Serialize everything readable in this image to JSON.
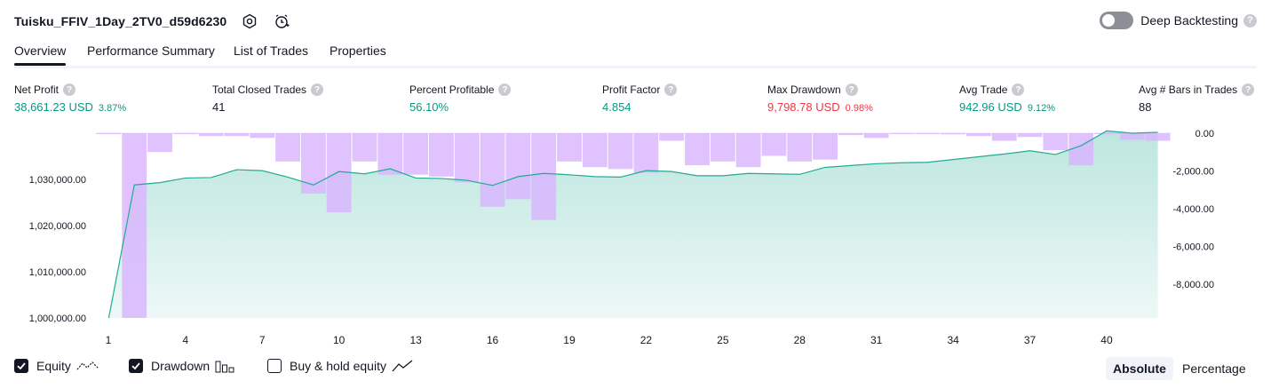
{
  "header": {
    "title": "Tuisku_FFIV_1Day_2TV0_d59d6230",
    "deep_backtesting_label": "Deep Backtesting",
    "help_glyph": "?"
  },
  "tabs": [
    {
      "label": "Overview",
      "active": true
    },
    {
      "label": "Performance Summary",
      "active": false
    },
    {
      "label": "List of Trades",
      "active": false
    },
    {
      "label": "Properties",
      "active": false
    }
  ],
  "stats": [
    {
      "label": "Net Profit",
      "value": "38,661.23 USD",
      "pct": "3.87%",
      "color": "green"
    },
    {
      "label": "Total Closed Trades",
      "value": "41",
      "pct": "",
      "color": "default"
    },
    {
      "label": "Percent Profitable",
      "value": "56.10%",
      "pct": "",
      "color": "green"
    },
    {
      "label": "Profit Factor",
      "value": "4.854",
      "pct": "",
      "color": "green"
    },
    {
      "label": "Max Drawdown",
      "value": "9,798.78 USD",
      "pct": "0.98%",
      "color": "red"
    },
    {
      "label": "Avg Trade",
      "value": "942.96 USD",
      "pct": "9.12%",
      "color": "green"
    },
    {
      "label": "Avg # Bars in Trades",
      "value": "88",
      "pct": "",
      "color": "default"
    }
  ],
  "chart_data": {
    "type": "area",
    "x": [
      1,
      2,
      3,
      4,
      5,
      6,
      7,
      8,
      9,
      10,
      11,
      12,
      13,
      14,
      15,
      16,
      17,
      18,
      19,
      20,
      21,
      22,
      23,
      24,
      25,
      26,
      27,
      28,
      29,
      30,
      31,
      32,
      33,
      34,
      35,
      36,
      37,
      38,
      39,
      40,
      41,
      42
    ],
    "x_ticks": [
      "1",
      "4",
      "7",
      "10",
      "13",
      "16",
      "19",
      "22",
      "25",
      "28",
      "31",
      "34",
      "37",
      "40"
    ],
    "series": [
      {
        "name": "Equity",
        "axis": "left",
        "values": [
          1000000,
          1028800,
          1029300,
          1030300,
          1030400,
          1032100,
          1031900,
          1030500,
          1028800,
          1031700,
          1031200,
          1032300,
          1030300,
          1030200,
          1029800,
          1028700,
          1030600,
          1031300,
          1031000,
          1030600,
          1030500,
          1031900,
          1031700,
          1030800,
          1030800,
          1031300,
          1031200,
          1031100,
          1032600,
          1033000,
          1033400,
          1033600,
          1033700,
          1034300,
          1034900,
          1035500,
          1036200,
          1035400,
          1037300,
          1040500,
          1040000,
          1040200
        ]
      },
      {
        "name": "Drawdown",
        "axis": "right",
        "values": [
          -30,
          -9798.78,
          -1000,
          -50,
          -150,
          -150,
          -250,
          -1500,
          -3200,
          -4200,
          -1500,
          -2200,
          -2200,
          -2300,
          -2600,
          -3900,
          -3500,
          -4600,
          -1500,
          -1800,
          -1900,
          -2100,
          -400,
          -1700,
          -1500,
          -1800,
          -1200,
          -1500,
          -1400,
          -100,
          -250,
          -20,
          -20,
          -60,
          -150,
          -400,
          -200,
          -900,
          -1700,
          -10,
          -350,
          -400
        ]
      }
    ],
    "y_left": {
      "ticks": [
        "1,000,000.00",
        "1,010,000.00",
        "1,020,000.00",
        "1,030,000.00"
      ],
      "range": [
        1000000,
        1040000
      ]
    },
    "y_right": {
      "ticks": [
        "0.00",
        "-2,000.00",
        "-4,000.00",
        "-6,000.00",
        "-8,000.00"
      ],
      "range": [
        -9798.78,
        0
      ]
    },
    "colors": {
      "equity_line": "#22ab94",
      "drawdown_bar": "#d8b4fe",
      "overlap": "#b1b4e3"
    }
  },
  "legend": {
    "equity": {
      "label": "Equity",
      "checked": true
    },
    "drawdown": {
      "label": "Drawdown",
      "checked": true
    },
    "buy_hold": {
      "label": "Buy & hold equity",
      "checked": false
    }
  },
  "modes": {
    "absolute": "Absolute",
    "percentage": "Percentage"
  }
}
